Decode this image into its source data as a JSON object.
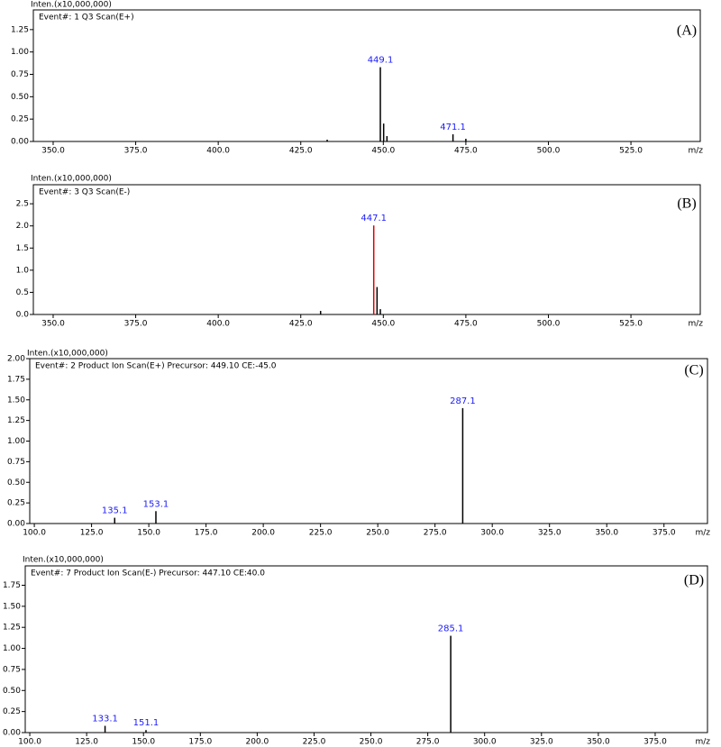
{
  "chart_data": [
    {
      "type": "bar",
      "panel": "(A)",
      "y_label": "Inten.(x10,000,000)",
      "subtitle": "Event#: 1 Q3 Scan(E+)",
      "x_label": "m/z",
      "x": [
        433.0,
        449.1,
        450.1,
        451.1,
        471.1,
        475.0
      ],
      "values": [
        0.02,
        0.83,
        0.2,
        0.06,
        0.08,
        0.03
      ],
      "x_labels": [
        null,
        "449.1",
        null,
        null,
        "471.1",
        null
      ],
      "colors": [
        "#000000",
        "#000000",
        "#000000",
        "#000000",
        "#000000",
        "#000000"
      ],
      "xlim": [
        344,
        546
      ],
      "ylim": [
        0,
        1.47
      ],
      "xticks": [
        {
          "value": 350,
          "label": "350.0"
        },
        {
          "value": 375,
          "label": "375.0"
        },
        {
          "value": 400,
          "label": "400.0"
        },
        {
          "value": 425,
          "label": "425.0"
        },
        {
          "value": 450,
          "label": "450.0"
        },
        {
          "value": 475,
          "label": "475.0"
        },
        {
          "value": 500,
          "label": "500.0"
        },
        {
          "value": 525,
          "label": "525.0"
        }
      ],
      "yticks": [
        {
          "value": 0,
          "label": "0.00"
        },
        {
          "value": 0.25,
          "label": "0.25"
        },
        {
          "value": 0.5,
          "label": "0.50"
        },
        {
          "value": 0.75,
          "label": "0.75"
        },
        {
          "value": 1,
          "label": "1.00"
        },
        {
          "value": 1.25,
          "label": "1.25"
        }
      ]
    },
    {
      "type": "bar",
      "panel": "(B)",
      "y_label": "Inten.(x10,000,000)",
      "subtitle": "Event#: 3 Q3 Scan(E-)",
      "x_label": "m/z",
      "x": [
        431.0,
        447.1,
        448.1,
        449.1
      ],
      "values": [
        0.08,
        2.01,
        0.62,
        0.12
      ],
      "x_labels": [
        null,
        "447.1",
        null,
        null
      ],
      "colors": [
        "#000000",
        "#e00000",
        "#000000",
        "#000000"
      ],
      "xlim": [
        344,
        546
      ],
      "ylim": [
        0,
        2.93
      ],
      "xticks": [
        {
          "value": 350,
          "label": "350.0"
        },
        {
          "value": 375,
          "label": "375.0"
        },
        {
          "value": 400,
          "label": "400.0"
        },
        {
          "value": 425,
          "label": "425.0"
        },
        {
          "value": 450,
          "label": "450.0"
        },
        {
          "value": 475,
          "label": "475.0"
        },
        {
          "value": 500,
          "label": "500.0"
        },
        {
          "value": 525,
          "label": "525.0"
        }
      ],
      "yticks": [
        {
          "value": 0,
          "label": "0.0"
        },
        0.5,
        {
          "value": 1,
          "label": "1.0"
        },
        1.5,
        {
          "value": 2,
          "label": "2.0"
        },
        2.5
      ]
    },
    {
      "type": "bar",
      "panel": "(C)",
      "y_label": "Inten.(x10,000,000)",
      "subtitle": "Event#: 2 Product Ion Scan(E+)  Precursor: 449.10 CE:-45.0",
      "x_label": "m/z",
      "x": [
        135.1,
        153.1,
        287.1
      ],
      "values": [
        0.07,
        0.15,
        1.4
      ],
      "x_labels": [
        "135.1",
        "153.1",
        "287.1"
      ],
      "colors": [
        "#000000",
        "#000000",
        "#000000"
      ],
      "xlim": [
        98,
        394
      ],
      "ylim": [
        0,
        2.0
      ],
      "xticks": [
        {
          "value": 100,
          "label": "100.0"
        },
        {
          "value": 125,
          "label": "125.0"
        },
        {
          "value": 150,
          "label": "150.0"
        },
        {
          "value": 175,
          "label": "175.0"
        },
        {
          "value": 200,
          "label": "200.0"
        },
        {
          "value": 225,
          "label": "225.0"
        },
        {
          "value": 250,
          "label": "250.0"
        },
        {
          "value": 275,
          "label": "275.0"
        },
        {
          "value": 300,
          "label": "300.0"
        },
        {
          "value": 325,
          "label": "325.0"
        },
        {
          "value": 350,
          "label": "350.0"
        },
        {
          "value": 375,
          "label": "375.0"
        }
      ],
      "yticks": [
        {
          "value": 0,
          "label": "0.00"
        },
        {
          "value": 0.25,
          "label": "0.25"
        },
        {
          "value": 0.5,
          "label": "0.50"
        },
        {
          "value": 0.75,
          "label": "0.75"
        },
        {
          "value": 1,
          "label": "1.00"
        },
        {
          "value": 1.25,
          "label": "1.25"
        },
        {
          "value": 1.5,
          "label": "1.50"
        },
        {
          "value": 1.75,
          "label": "1.75"
        },
        {
          "value": 2,
          "label": "2.00"
        }
      ]
    },
    {
      "type": "bar",
      "panel": "(D)",
      "y_label": "Inten.(x10,000,000)",
      "subtitle": "Event#: 7 Product Ion Scan(E-)  Precursor: 447.10 CE:40.0",
      "x_label": "m/z",
      "x": [
        133.1,
        151.1,
        285.1
      ],
      "values": [
        0.08,
        0.03,
        1.15
      ],
      "x_labels": [
        "133.1",
        "151.1",
        "285.1"
      ],
      "colors": [
        "#000000",
        "#000000",
        "#000000"
      ],
      "xlim": [
        98,
        398
      ],
      "ylim": [
        0,
        1.98
      ],
      "xticks": [
        {
          "value": 100,
          "label": "100.0"
        },
        {
          "value": 125,
          "label": "125.0"
        },
        {
          "value": 150,
          "label": "150.0"
        },
        {
          "value": 175,
          "label": "175.0"
        },
        {
          "value": 200,
          "label": "200.0"
        },
        {
          "value": 225,
          "label": "225.0"
        },
        {
          "value": 250,
          "label": "250.0"
        },
        {
          "value": 275,
          "label": "275.0"
        },
        {
          "value": 300,
          "label": "300.0"
        },
        {
          "value": 325,
          "label": "325.0"
        },
        {
          "value": 350,
          "label": "350.0"
        },
        {
          "value": 375,
          "label": "375.0"
        }
      ],
      "yticks": [
        {
          "value": 0,
          "label": "0.00"
        },
        {
          "value": 0.25,
          "label": "0.25"
        },
        {
          "value": 0.5,
          "label": "0.50"
        },
        {
          "value": 0.75,
          "label": "0.75"
        },
        {
          "value": 1,
          "label": "1.00"
        },
        {
          "value": 1.25,
          "label": "1.25"
        },
        {
          "value": 1.5,
          "label": "1.50"
        },
        {
          "value": 1.75,
          "label": "1.75"
        }
      ]
    }
  ]
}
